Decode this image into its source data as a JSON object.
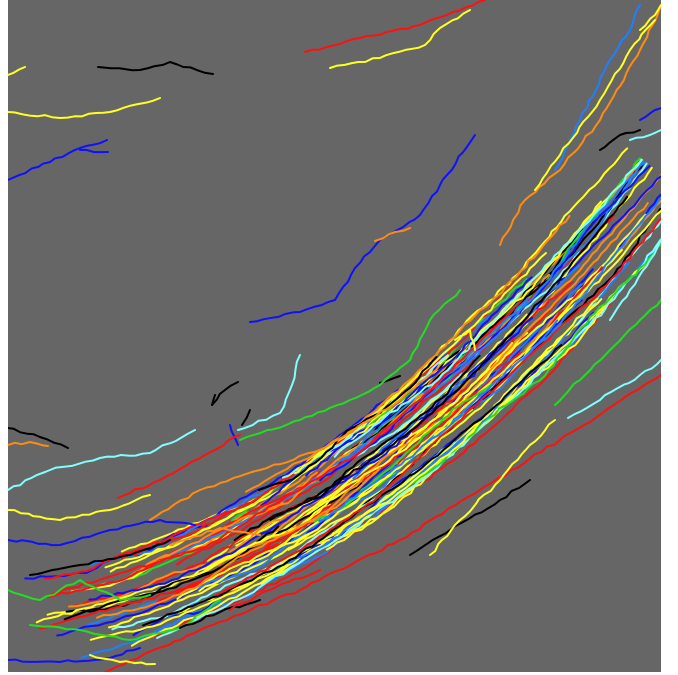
{
  "image": {
    "background_color": "#ffffff",
    "panel_color": "#666666",
    "track_colors": {
      "blue": "#1010ff",
      "dodger_blue": "#1f7fff",
      "green": "#22dd22",
      "red": "#ff1010",
      "yellow": "#ffff22",
      "orange": "#ff8c10",
      "cyan": "#80ffff",
      "black": "#000000"
    }
  }
}
